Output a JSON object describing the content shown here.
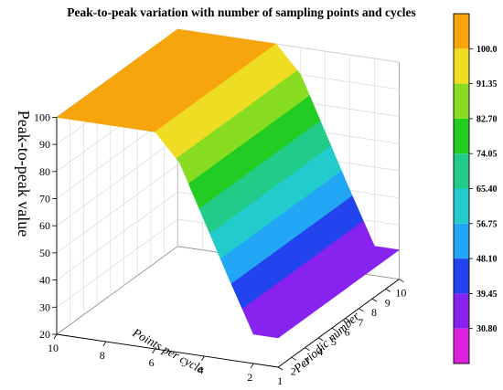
{
  "chart_data": {
    "type": "surface3d",
    "title": "Peak-to-peak variation with number of sampling points and cycles",
    "zlabel": "Peak-to-peak value",
    "xlabel": "Points per cycle",
    "ylabel": "Periodic number",
    "z_ticks": [
      "20",
      "30",
      "40",
      "50",
      "60",
      "70",
      "80",
      "90",
      "100"
    ],
    "x_ticks": [
      "10",
      "8",
      "6",
      "4",
      "2"
    ],
    "y_ticks": [
      "1",
      "2",
      "3",
      "4",
      "5",
      "6",
      "7",
      "8",
      "9",
      "10"
    ],
    "zlim": [
      20,
      100
    ],
    "points_per_cycle": [
      1,
      2,
      3,
      4,
      5,
      6,
      7,
      8,
      9,
      10
    ],
    "peak_to_peak_by_points_per_cycle": [
      30.8,
      30.8,
      50.0,
      70.0,
      90.0,
      100.0,
      100.0,
      100.0,
      100.0,
      100.0
    ],
    "note_surface_constant_along": "Periodic number",
    "colorbar": {
      "ticks": [
        "100.0",
        "91.35",
        "82.70",
        "74.05",
        "65.40",
        "56.75",
        "48.10",
        "39.45",
        "30.80"
      ],
      "levels": [
        22.15,
        30.8,
        39.45,
        48.1,
        56.75,
        65.4,
        74.05,
        82.7,
        91.35,
        100.0,
        108.65
      ],
      "colors": [
        "#dd22dd",
        "#8822ee",
        "#2244ee",
        "#22a6f6",
        "#22cccc",
        "#22cc88",
        "#22cc22",
        "#88dd22",
        "#eedd22",
        "#f6a50c"
      ]
    }
  }
}
